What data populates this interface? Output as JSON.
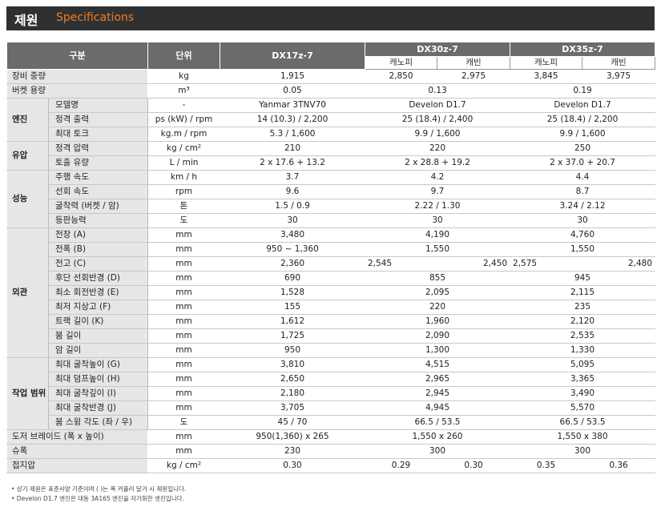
{
  "header": {
    "title_ko": "제원",
    "title_en": "Specifications"
  },
  "columns": {
    "category": "구분",
    "unit": "단위",
    "dx17": "DX17z-7",
    "dx30": "DX30z-7",
    "dx35": "DX35z-7",
    "canopy": "캐노피",
    "cabin": "캐빈"
  },
  "rows": {
    "weight": {
      "label": "장비 중량",
      "unit": "kg",
      "dx17": "1,915",
      "dx30c": "2,850",
      "dx30k": "2,975",
      "dx35c": "3,845",
      "dx35k": "3,975"
    },
    "bucket": {
      "label": "버켓 용량",
      "unit": "m³",
      "dx17": "0.05",
      "dx30": "0.13",
      "dx35": "0.19"
    },
    "engine": {
      "cat": "엔진",
      "model": {
        "label": "모델명",
        "unit": "-",
        "dx17": "Yanmar 3TNV70",
        "dx30": "Develon D1.7",
        "dx35": "Develon D1.7"
      },
      "power": {
        "label": "정격 출력",
        "unit": "ps (kW) / rpm",
        "dx17": "14 (10.3) / 2,200",
        "dx30": "25 (18.4) / 2,400",
        "dx35": "25 (18.4) / 2,200"
      },
      "torque": {
        "label": "최대 토크",
        "unit": "kg.m / rpm",
        "dx17": "5.3 / 1,600",
        "dx30": "9.9 / 1,600",
        "dx35": "9.9 / 1,600"
      }
    },
    "hydraulic": {
      "cat": "유압",
      "pressure": {
        "label": "정격 압력",
        "unit": "kg / cm²",
        "dx17": "210",
        "dx30": "220",
        "dx35": "250"
      },
      "flow": {
        "label": "토출 유량",
        "unit": "L / min",
        "dx17": "2 x 17.6 + 13.2",
        "dx30": "2 x 28.8 + 19.2",
        "dx35": "2 x 37.0 + 20.7"
      }
    },
    "performance": {
      "cat": "성능",
      "travel": {
        "label": "주행 속도",
        "unit": "km / h",
        "dx17": "3.7",
        "dx30": "4.2",
        "dx35": "4.4"
      },
      "swing": {
        "label": "선회 속도",
        "unit": "rpm",
        "dx17": "9.6",
        "dx30": "9.7",
        "dx35": "8.7"
      },
      "dig": {
        "label": "굴착력 (버켓 / 암)",
        "unit": "톤",
        "dx17": "1.5 / 0.9",
        "dx30": "2.22 / 1.30",
        "dx35": "3.24 / 2.12"
      },
      "grade": {
        "label": "등판능력",
        "unit": "도",
        "dx17": "30",
        "dx30": "30",
        "dx35": "30"
      }
    },
    "exterior": {
      "cat": "외관",
      "length": {
        "label": "전장 (A)",
        "unit": "mm",
        "dx17": "3,480",
        "dx30": "4,190",
        "dx35": "4,760"
      },
      "width": {
        "label": "전폭 (B)",
        "unit": "mm",
        "dx17": "950 ~ 1,360",
        "dx30": "1,550",
        "dx35": "1,550"
      },
      "height": {
        "label": "전고 (C)",
        "unit": "mm",
        "dx17": "2,360",
        "dx30c": "2,545",
        "dx30k": "2,450",
        "dx35c": "2,575",
        "dx35k": "2,480"
      },
      "rear": {
        "label": "후단 선회반경 (D)",
        "unit": "mm",
        "dx17": "690",
        "dx30": "855",
        "dx35": "945"
      },
      "minswing": {
        "label": "최소 회전반경 (E)",
        "unit": "mm",
        "dx17": "1,528",
        "dx30": "2,095",
        "dx35": "2,115"
      },
      "clearance": {
        "label": "최저 지상고 (F)",
        "unit": "mm",
        "dx17": "155",
        "dx30": "220",
        "dx35": "235"
      },
      "track": {
        "label": "트랙 길이 (K)",
        "unit": "mm",
        "dx17": "1,612",
        "dx30": "1,960",
        "dx35": "2,120"
      },
      "boom": {
        "label": "붐 길이",
        "unit": "mm",
        "dx17": "1,725",
        "dx30": "2,090",
        "dx35": "2,535"
      },
      "arm": {
        "label": "암 길이",
        "unit": "mm",
        "dx17": "950",
        "dx30": "1,300",
        "dx35": "1,330"
      }
    },
    "work": {
      "cat": "작업 범위",
      "digh": {
        "label": "최대 굴착높이 (G)",
        "unit": "mm",
        "dx17": "3,810",
        "dx30": "4,515",
        "dx35": "5,095"
      },
      "dumph": {
        "label": "최대 덤프높이 (H)",
        "unit": "mm",
        "dx17": "2,650",
        "dx30": "2,965",
        "dx35": "3,365"
      },
      "digd": {
        "label": "최대 굴착깊이 (I)",
        "unit": "mm",
        "dx17": "2,180",
        "dx30": "2,945",
        "dx35": "3,490"
      },
      "digr": {
        "label": "최대 굴착반경 (J)",
        "unit": "mm",
        "dx17": "3,705",
        "dx30": "4,945",
        "dx35": "5,570"
      },
      "boomswing": {
        "label": "붐 스윙 각도 (좌 / 우)",
        "unit": "도",
        "dx17": "45 / 70",
        "dx30": "66.5 / 53.5",
        "dx35": "66.5 / 53.5"
      }
    },
    "dozer": {
      "label": "도저 브레이드 (폭 x 높이)",
      "unit": "mm",
      "dx17": "950(1,360) x 265",
      "dx30": "1,550 x 260",
      "dx35": "1,550 x 380"
    },
    "shoe": {
      "label": "슈폭",
      "unit": "mm",
      "dx17": "230",
      "dx30": "300",
      "dx35": "300"
    },
    "ground": {
      "label": "접지압",
      "unit": "kg / cm²",
      "dx17": "0.30",
      "dx30c": "0.29",
      "dx30k": "0.30",
      "dx35c": "0.35",
      "dx35k": "0.36"
    }
  },
  "footnotes": [
    "• 상기 제원은 표준사양 기준이며 ( )는 폭 커플러 달거 시 제원입니다.",
    "• Develon D1.7 엔진은 대동 3A165 엔진을 자가화한 엔진입니다."
  ]
}
